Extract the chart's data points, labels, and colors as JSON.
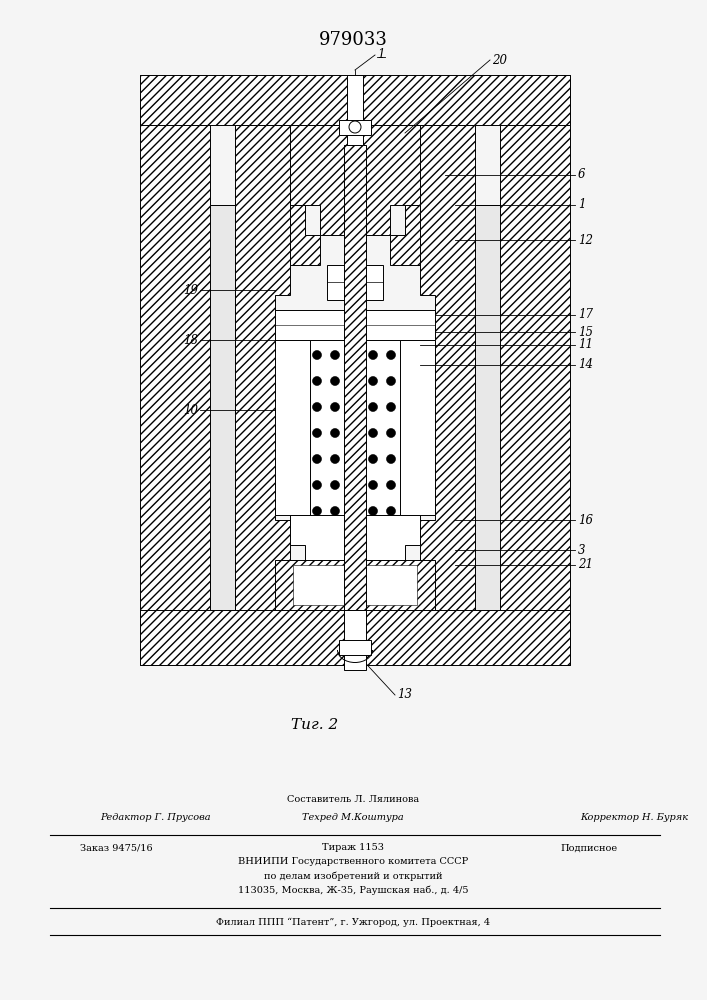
{
  "title": "979033",
  "background_color": "#f0f0f0",
  "line_color": "#000000",
  "page_width": 7.07,
  "page_height": 10.0,
  "footer": {
    "line1_center": "Составитель Л. Лялинова",
    "line2_left": "Редактор Г. Прусова",
    "line2_center": "Техред М.Коштура",
    "line2_right": "Корректор Н. Буряк",
    "line3_left": "Заказ 9475/16",
    "line3_center": "Тираж 1153",
    "line3_right": "Подписное",
    "line4": "ВНИИПИ Государственного комитета СССР",
    "line5": "по делам изобретений и открытий",
    "line6": "113035, Москва, Ж-35, Раушская наб., д. 4/5",
    "line7": "Филиал ППП “Патент”, г. Ужгород, ул. Проектная, 4"
  }
}
